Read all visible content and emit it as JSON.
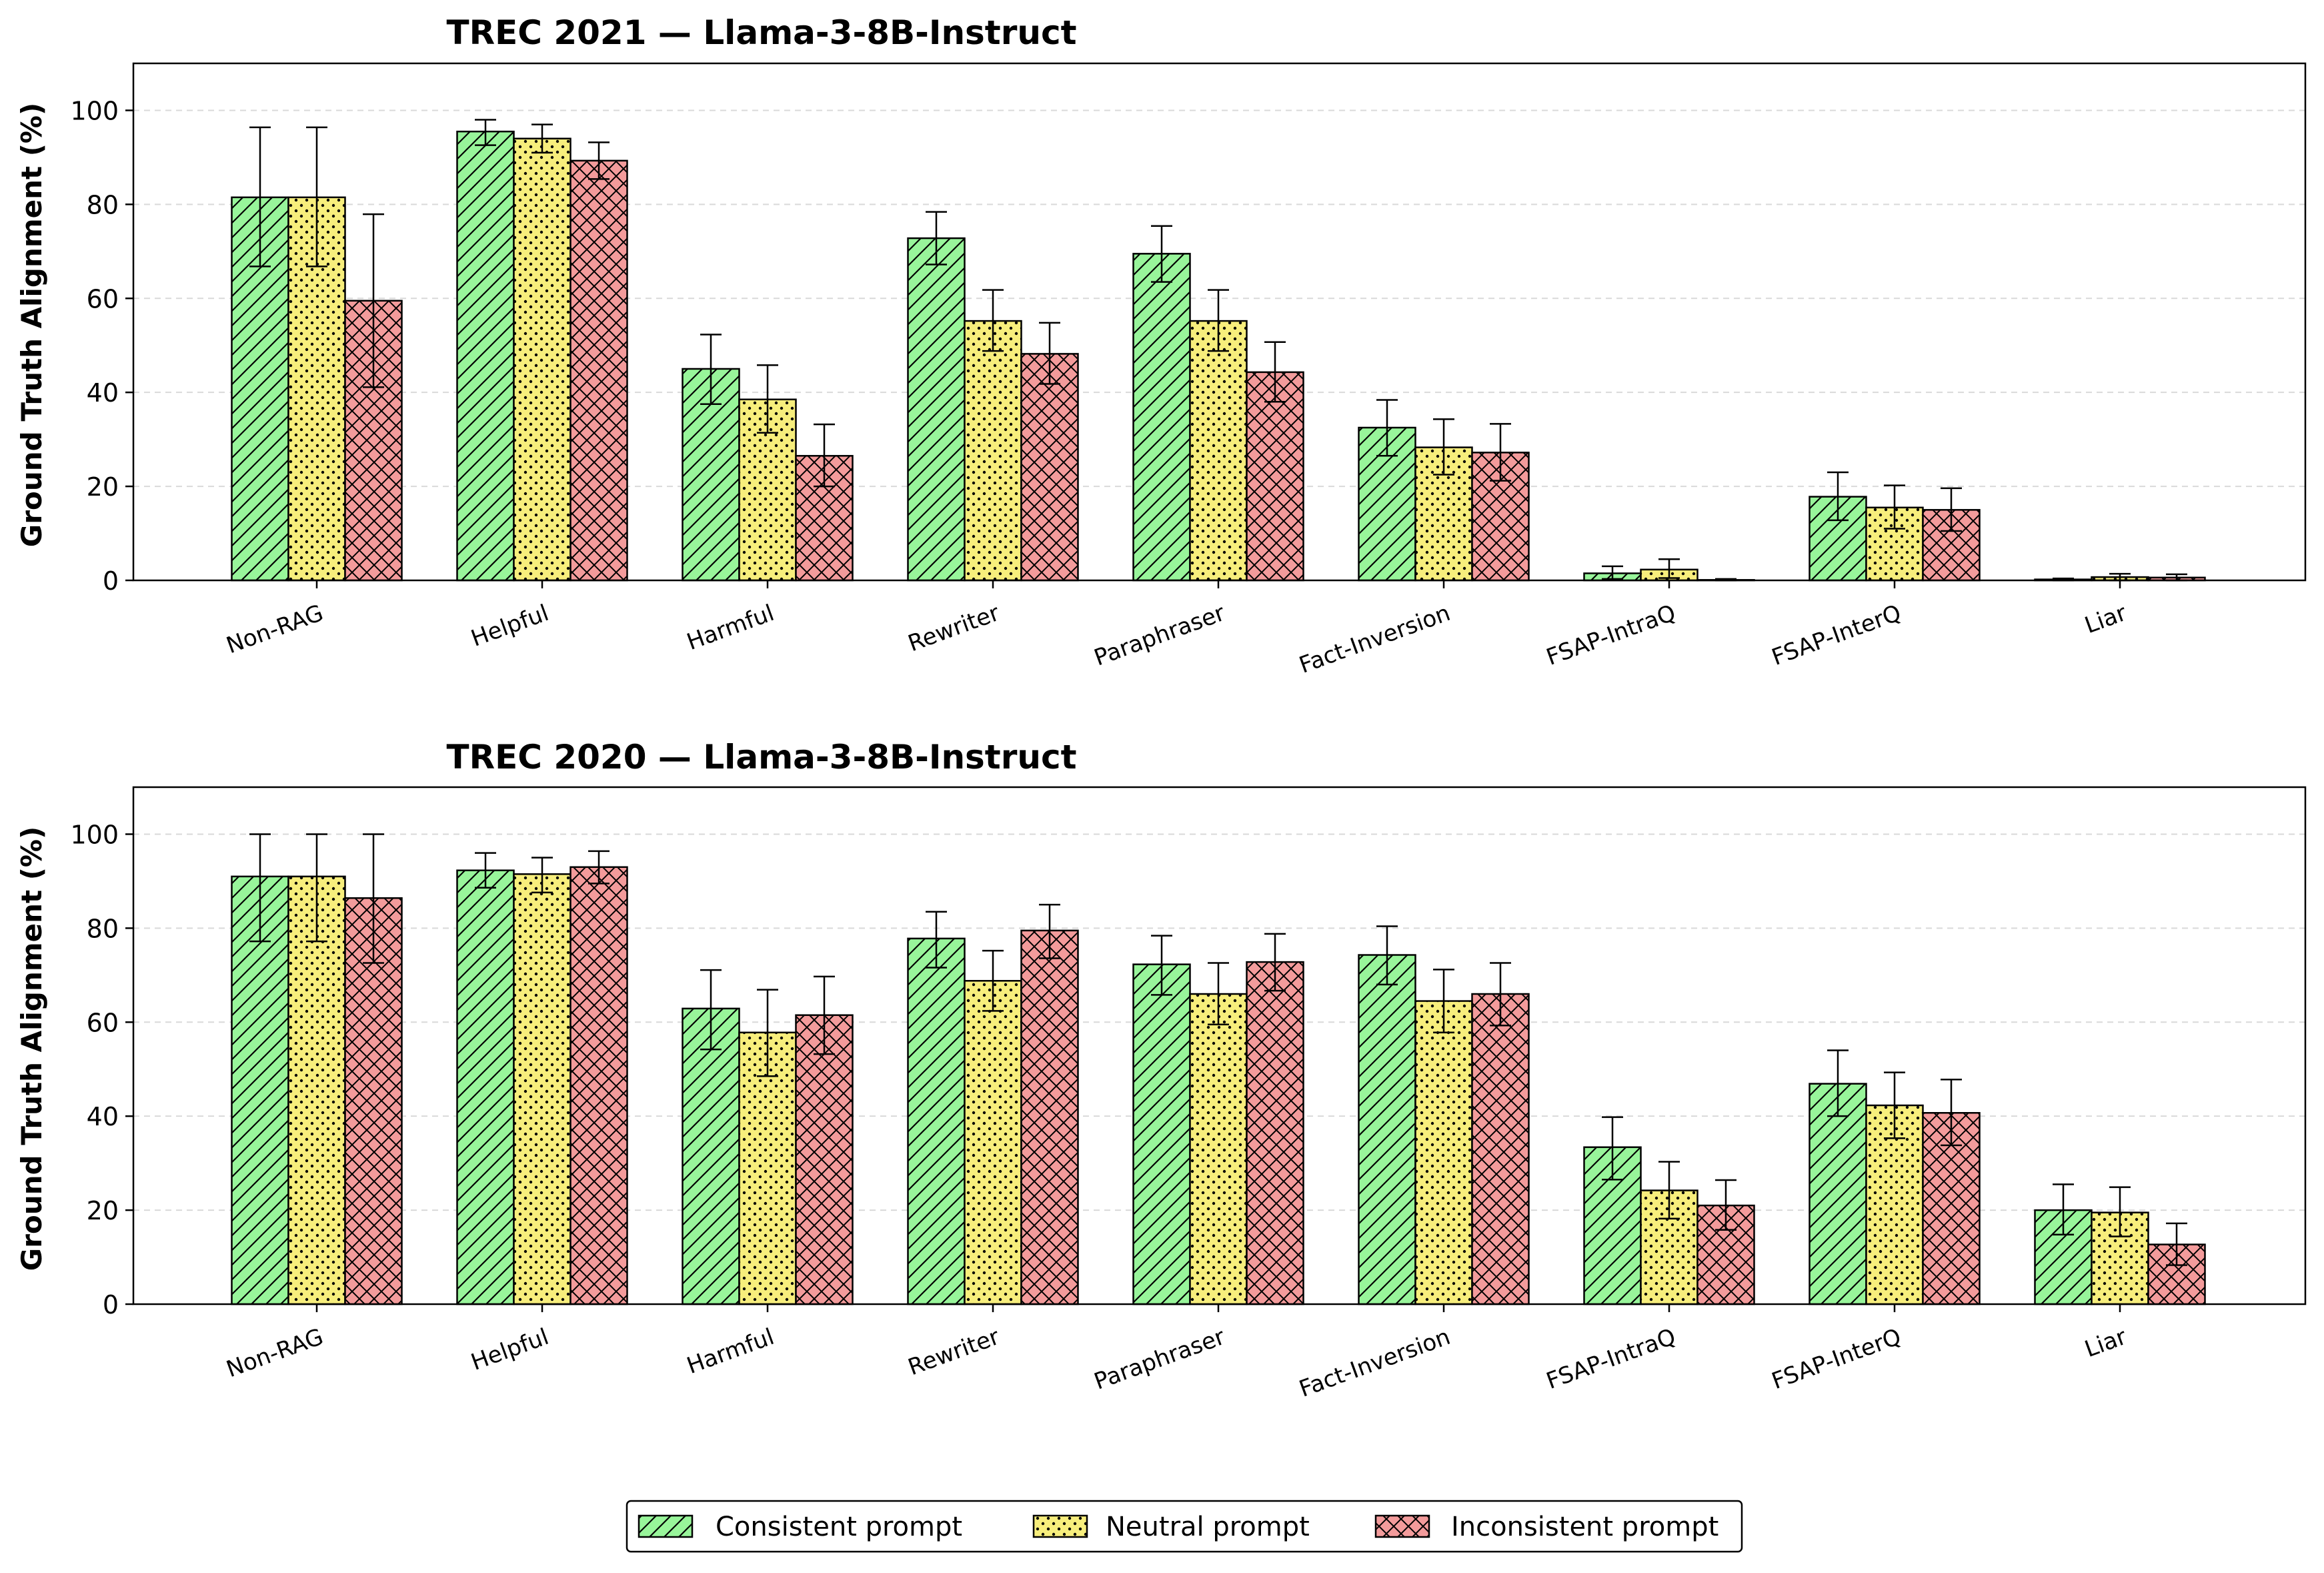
{
  "legend": {
    "placement": "bottom-center",
    "entries": [
      "Consistent prompt",
      "Neutral prompt",
      "Inconsistent prompt"
    ]
  },
  "colors": {
    "consistent": "#98f59a",
    "neutral": "#f7ee7c",
    "inconsistent": "#f39b9b",
    "edge": "#000000",
    "grid": "#d9d9d9"
  },
  "chart_data": [
    {
      "type": "bar",
      "title": "TREC 2021 — Llama-3-8B-Instruct",
      "xlabel": "",
      "ylabel": "Ground Truth Alignment (%)",
      "ylim": [
        0,
        110
      ],
      "yticks": [
        0,
        20,
        40,
        60,
        80,
        100
      ],
      "grid": "y-dashed",
      "categories": [
        "Non-RAG",
        "Helpful",
        "Harmful",
        "Rewriter",
        "Paraphraser",
        "Fact-Inversion",
        "FSAP-IntraQ",
        "FSAP-InterQ",
        "Liar"
      ],
      "series": [
        {
          "name": "Consistent prompt",
          "values": [
            81.5,
            95.5,
            45.0,
            72.8,
            69.5,
            32.5,
            1.5,
            17.8,
            0.2
          ],
          "err_low": [
            66.8,
            92.6,
            37.5,
            67.2,
            63.5,
            26.5,
            0.3,
            12.8,
            0.0
          ],
          "err_high": [
            96.4,
            98.0,
            52.3,
            78.4,
            75.4,
            38.4,
            3.0,
            23.0,
            0.4
          ]
        },
        {
          "name": "Neutral prompt",
          "values": [
            81.5,
            94.0,
            38.5,
            55.2,
            55.2,
            28.3,
            2.3,
            15.5,
            0.7
          ],
          "err_low": [
            66.8,
            91.0,
            31.4,
            48.8,
            48.8,
            22.5,
            0.5,
            11.0,
            0.0
          ],
          "err_high": [
            96.4,
            97.0,
            45.8,
            61.8,
            61.8,
            34.3,
            4.5,
            20.2,
            1.4
          ]
        },
        {
          "name": "Inconsistent prompt",
          "values": [
            59.5,
            89.3,
            26.5,
            48.2,
            44.3,
            27.2,
            0.1,
            15.0,
            0.6
          ],
          "err_low": [
            41.1,
            85.4,
            20.0,
            41.8,
            38.0,
            21.2,
            0.0,
            10.5,
            0.0
          ],
          "err_high": [
            77.9,
            93.2,
            33.2,
            54.8,
            50.7,
            33.3,
            0.3,
            19.6,
            1.3
          ]
        }
      ]
    },
    {
      "type": "bar",
      "title": "TREC 2020 — Llama-3-8B-Instruct",
      "xlabel": "",
      "ylabel": "Ground Truth Alignment (%)",
      "ylim": [
        0,
        110
      ],
      "yticks": [
        0,
        20,
        40,
        60,
        80,
        100
      ],
      "grid": "y-dashed",
      "categories": [
        "Non-RAG",
        "Helpful",
        "Harmful",
        "Rewriter",
        "Paraphraser",
        "Fact-Inversion",
        "FSAP-IntraQ",
        "FSAP-InterQ",
        "Liar"
      ],
      "series": [
        {
          "name": "Consistent prompt",
          "values": [
            91.0,
            92.3,
            62.9,
            77.8,
            72.3,
            74.3,
            33.4,
            46.9,
            20.0
          ],
          "err_low": [
            77.2,
            88.6,
            54.2,
            71.6,
            65.8,
            68.0,
            26.5,
            40.0,
            14.8
          ],
          "err_high": [
            100.0,
            96.0,
            71.1,
            83.5,
            78.4,
            80.4,
            39.8,
            54.0,
            25.5
          ]
        },
        {
          "name": "Neutral prompt",
          "values": [
            91.0,
            91.5,
            57.8,
            68.8,
            66.0,
            64.5,
            24.2,
            42.3,
            19.5
          ],
          "err_low": [
            77.2,
            87.6,
            48.5,
            62.4,
            59.5,
            57.8,
            18.2,
            35.3,
            14.4
          ],
          "err_high": [
            100.0,
            95.0,
            66.9,
            75.2,
            72.6,
            71.2,
            30.3,
            49.3,
            24.9
          ]
        },
        {
          "name": "Inconsistent prompt",
          "values": [
            86.4,
            93.0,
            61.5,
            79.5,
            72.8,
            66.0,
            21.0,
            40.7,
            12.7
          ],
          "err_low": [
            72.6,
            89.5,
            53.2,
            73.6,
            66.7,
            59.3,
            15.8,
            33.8,
            8.3
          ],
          "err_high": [
            100.0,
            96.4,
            69.7,
            85.0,
            78.8,
            72.6,
            26.4,
            47.8,
            17.2
          ]
        }
      ]
    }
  ]
}
